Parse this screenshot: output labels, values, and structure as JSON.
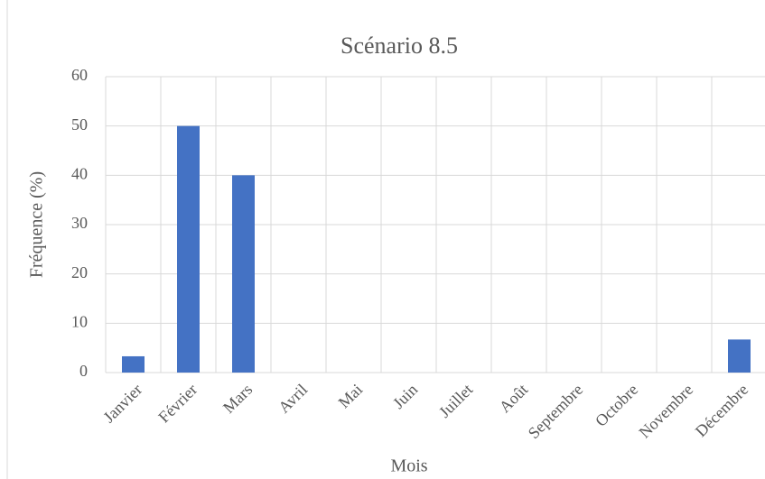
{
  "chart_data": {
    "type": "bar",
    "title": "Scénario 8.5",
    "x_label": "Mois",
    "y_label": "Fréquence (%)",
    "categories": [
      "Janvier",
      "Février",
      "Mars",
      "Avril",
      "Mai",
      "Juin",
      "Juillet",
      "Août",
      "Septembre",
      "Octobre",
      "Novembre",
      "Décembre"
    ],
    "values": [
      3.3,
      50,
      40,
      0,
      0,
      0,
      0,
      0,
      0,
      0,
      0,
      6.7
    ],
    "color": "#4472c4",
    "ylim": [
      0,
      60
    ],
    "yticks": [
      0,
      10,
      20,
      30,
      40,
      50,
      60
    ],
    "grid": true
  }
}
